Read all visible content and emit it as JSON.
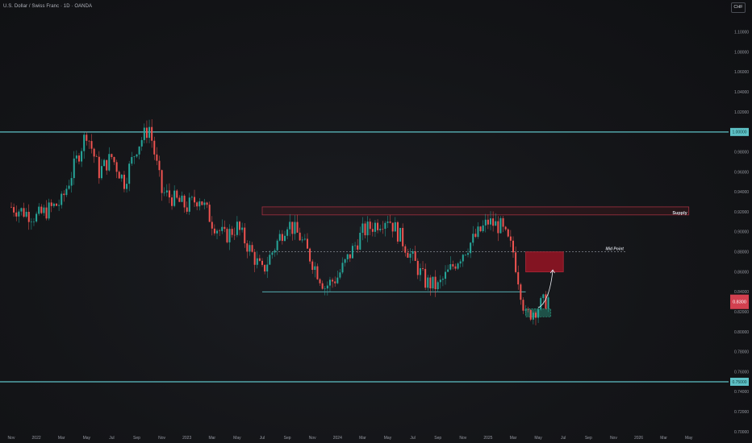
{
  "chart_data": {
    "type": "candlestick",
    "title": "U.S. Dollar / Swiss Franc · 1D · OANDA",
    "currency": "CHF",
    "ylim": [
      0.7,
      1.12
    ],
    "y_ticks": [
      "1.10000",
      "1.08000",
      "1.06000",
      "1.04000",
      "1.02000",
      "1.00000",
      "0.98000",
      "0.96000",
      "0.94000",
      "0.92000",
      "0.90000",
      "0.88000",
      "0.86000",
      "0.84000",
      "0.82000",
      "0.80000",
      "0.78000",
      "0.76000",
      "0.74000",
      "0.72000",
      "0.70000"
    ],
    "x_ticks": [
      "Nov",
      "2022",
      "Mar",
      "May",
      "Jul",
      "Sep",
      "Nov",
      "2023",
      "Mar",
      "May",
      "Jul",
      "Sep",
      "Nov",
      "2024",
      "Mar",
      "May",
      "Jul",
      "Sep",
      "Nov",
      "2025",
      "Mar",
      "May",
      "Jul",
      "Sep",
      "Nov",
      "2026",
      "Mar",
      "May"
    ],
    "price_path": [
      [
        "2021-11",
        0.925
      ],
      [
        "2022-01",
        0.915
      ],
      [
        "2022-03",
        0.93
      ],
      [
        "2022-05",
        1.0
      ],
      [
        "2022-06",
        0.96
      ],
      [
        "2022-07",
        0.975
      ],
      [
        "2022-08",
        0.95
      ],
      [
        "2022-09",
        0.985
      ],
      [
        "2022-10",
        1.005
      ],
      [
        "2022-11",
        0.94
      ],
      [
        "2023-01",
        0.925
      ],
      [
        "2023-02",
        0.935
      ],
      [
        "2023-03",
        0.91
      ],
      [
        "2023-04",
        0.895
      ],
      [
        "2023-05",
        0.905
      ],
      [
        "2023-07",
        0.86
      ],
      [
        "2023-09",
        0.91
      ],
      [
        "2023-10",
        0.895
      ],
      [
        "2023-12",
        0.845
      ],
      [
        "2024-01",
        0.855
      ],
      [
        "2024-03",
        0.9
      ],
      [
        "2024-05",
        0.915
      ],
      [
        "2024-06",
        0.895
      ],
      [
        "2024-08",
        0.85
      ],
      [
        "2024-09",
        0.845
      ],
      [
        "2024-11",
        0.88
      ],
      [
        "2025-01",
        0.91
      ],
      [
        "2025-02",
        0.905
      ],
      [
        "2025-03",
        0.88
      ],
      [
        "2025-04",
        0.815
      ],
      [
        "2025-05",
        0.825
      ],
      [
        "2025-06",
        0.835
      ]
    ],
    "levels": [
      {
        "price": 1.0,
        "label": "1.00000",
        "color": "#5ec1c6"
      },
      {
        "price": 0.75,
        "label": "0.75000",
        "color": "#5ec1c6"
      }
    ],
    "annotations": [
      {
        "label": "Supply",
        "type": "zone",
        "price_top": 0.925,
        "price_bottom": 0.917,
        "from": "2023-07",
        "to": "2026-05"
      },
      {
        "label": "Mid Point",
        "type": "dashed_line",
        "price": 0.88,
        "from": "2023-07",
        "to": "2025-12"
      },
      {
        "label": "",
        "type": "support_line",
        "price": 0.84,
        "from": "2023-07",
        "to": "2025-04"
      },
      {
        "label": "",
        "type": "zone",
        "price_top": 0.88,
        "price_bottom": 0.86,
        "from": "2025-04",
        "to": "2025-07"
      },
      {
        "label": "",
        "type": "zone",
        "price_top": 0.823,
        "price_bottom": 0.815,
        "from": "2025-04",
        "to": "2025-06"
      }
    ],
    "current_price_label": "0.8300",
    "grid": false
  }
}
